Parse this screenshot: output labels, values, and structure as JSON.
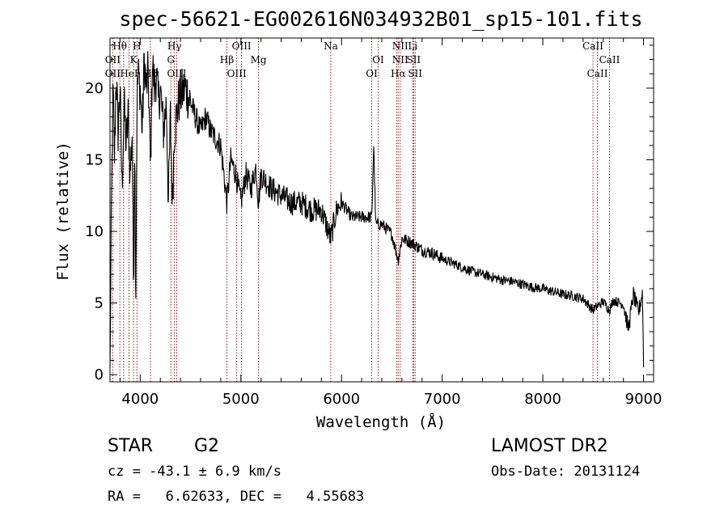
{
  "chart_data": {
    "type": "line",
    "title": "spec-56621-EG002616N034932B01_sp15-101.fits",
    "xlabel": "Wavelength (Å)",
    "ylabel": "Flux (relative)",
    "xlim": [
      3700,
      9100
    ],
    "ylim": [
      -0.5,
      23.5
    ],
    "xticks": [
      4000,
      5000,
      6000,
      7000,
      8000,
      9000
    ],
    "yticks": [
      0,
      5,
      10,
      15,
      20
    ],
    "grid": false,
    "series": [
      {
        "name": "spectrum",
        "x": [
          3700,
          3715,
          3730,
          3745,
          3760,
          3780,
          3800,
          3820,
          3840,
          3860,
          3880,
          3900,
          3920,
          3933,
          3945,
          3955,
          3968,
          3980,
          4000,
          4020,
          4040,
          4060,
          4080,
          4102,
          4120,
          4140,
          4160,
          4180,
          4200,
          4230,
          4260,
          4280,
          4300,
          4320,
          4340,
          4360,
          4380,
          4400,
          4450,
          4500,
          4550,
          4600,
          4650,
          4700,
          4750,
          4800,
          4861,
          4900,
          4950,
          5000,
          5050,
          5100,
          5150,
          5175,
          5200,
          5300,
          5400,
          5500,
          5600,
          5700,
          5800,
          5893,
          5950,
          6000,
          6100,
          6200,
          6300,
          6320,
          6340,
          6400,
          6500,
          6563,
          6600,
          6700,
          6800,
          6900,
          7000,
          7100,
          7200,
          7300,
          7400,
          7500,
          7600,
          7700,
          7800,
          7900,
          8000,
          8100,
          8200,
          8300,
          8400,
          8498,
          8542,
          8600,
          8662,
          8700,
          8800,
          8850,
          8900,
          8950,
          8990,
          9000
        ],
        "values": [
          0.5,
          12,
          20,
          15,
          21,
          17,
          20,
          13,
          19,
          16,
          18,
          14,
          17,
          6,
          17,
          5,
          19,
          21,
          20,
          17,
          22,
          20,
          21,
          14,
          22,
          20,
          21,
          19,
          20,
          17,
          19,
          12,
          18,
          12,
          17,
          18,
          19,
          19.5,
          20,
          19,
          18,
          17,
          18,
          17,
          16.5,
          16,
          12,
          15,
          14,
          12,
          14,
          13,
          14.5,
          12,
          14,
          13,
          12.5,
          12,
          12,
          11.5,
          11.5,
          9.5,
          11.5,
          12,
          11,
          11,
          11,
          16,
          10.5,
          10.5,
          9.8,
          8,
          9.5,
          9.2,
          8.7,
          8.5,
          8.1,
          7.8,
          7.5,
          7.2,
          7,
          6.8,
          6.6,
          6.5,
          6.3,
          6.1,
          6,
          5.8,
          5.6,
          5.5,
          5.3,
          4.5,
          4.8,
          5.1,
          4.5,
          5.2,
          4.9,
          3.2,
          5.6,
          4.3,
          5.8,
          0.5
        ]
      }
    ],
    "lines": [
      {
        "name": "OII",
        "x": 3727
      },
      {
        "name": "Hθ",
        "x": 3798
      },
      {
        "name": "Hη",
        "x": 3835
      },
      {
        "name": "HeI",
        "x": 3889
      },
      {
        "name": "K",
        "x": 3934
      },
      {
        "name": "H",
        "x": 3968
      },
      {
        "name": "Hδ",
        "x": 4102
      },
      {
        "name": "Hγ",
        "x": 4340
      },
      {
        "name": "G",
        "x": 4305
      },
      {
        "name": "OIII",
        "x": 4363
      },
      {
        "name": "Hβ",
        "x": 4861
      },
      {
        "name": "OIII",
        "x": 4959
      },
      {
        "name": "OIII",
        "x": 5007
      },
      {
        "name": "Mg",
        "x": 5175
      },
      {
        "name": "Na",
        "x": 5893
      },
      {
        "name": "OI",
        "x": 6300
      },
      {
        "name": "OI",
        "x": 6364
      },
      {
        "name": "NII",
        "x": 6548
      },
      {
        "name": "Hα",
        "x": 6563
      },
      {
        "name": "NII",
        "x": 6583
      },
      {
        "name": "Li",
        "x": 6708
      },
      {
        "name": "SII",
        "x": 6716
      },
      {
        "name": "SII",
        "x": 6731
      },
      {
        "name": "CaII",
        "x": 8498
      },
      {
        "name": "CaII",
        "x": 8542
      },
      {
        "name": "CaII",
        "x": 8662
      }
    ],
    "line_labels": [
      {
        "text": "OII",
        "x": 3727,
        "row": 2
      },
      {
        "text": "OII",
        "x": 3727,
        "row": 3
      },
      {
        "text": "Hθ",
        "x": 3798,
        "row": 0
      },
      {
        "text": "HeI",
        "x": 3889,
        "row": 3
      },
      {
        "text": "H",
        "x": 3968,
        "row": 0
      },
      {
        "text": "K",
        "x": 3934,
        "row": 1
      },
      {
        "text": "Hδ",
        "x": 4102,
        "row": 3
      },
      {
        "text": "Hγ",
        "x": 4340,
        "row": 0
      },
      {
        "text": "G",
        "x": 4305,
        "row": 1
      },
      {
        "text": "OIII",
        "x": 4363,
        "row": 3
      },
      {
        "text": "OIII",
        "x": 5007,
        "row": 0
      },
      {
        "text": "Hβ",
        "x": 4861,
        "row": 1
      },
      {
        "text": "OIII",
        "x": 4959,
        "row": 2
      },
      {
        "text": "Mg",
        "x": 5175,
        "row": 1
      },
      {
        "text": "Na",
        "x": 5893,
        "row": 0
      },
      {
        "text": "OI",
        "x": 6364,
        "row": 1
      },
      {
        "text": "OI",
        "x": 6300,
        "row": 2
      },
      {
        "text": "NII",
        "x": 6583,
        "row": 0
      },
      {
        "text": "Li",
        "x": 6708,
        "row": 0
      },
      {
        "text": "NII",
        "x": 6583,
        "row": 1
      },
      {
        "text": "SII",
        "x": 6716,
        "row": 1
      },
      {
        "text": "Hα",
        "x": 6563,
        "row": 2
      },
      {
        "text": "SII",
        "x": 6731,
        "row": 2
      },
      {
        "text": "CaII",
        "x": 8498,
        "row": 0
      },
      {
        "text": "CaII",
        "x": 8662,
        "row": 1
      },
      {
        "text": "CaII",
        "x": 8542,
        "row": 2
      }
    ]
  },
  "info": {
    "class": "STAR",
    "subclass": "G2",
    "survey": "LAMOST DR2",
    "cz": "cz = -43.1 ± 6.9 km/s",
    "obs_date": "Obs-Date: 20131124",
    "radec": "RA =   6.62633, DEC =   4.55683"
  },
  "colors": {
    "spectrum": "#000000",
    "line_markers": "#8b0000",
    "axes": "#000000"
  }
}
